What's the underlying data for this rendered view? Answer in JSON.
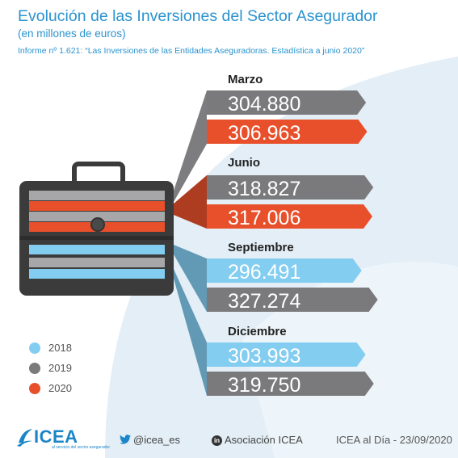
{
  "header": {
    "title": "Evolución de las Inversiones del Sector Asegurador",
    "subtitle": "(en millones de euros)",
    "source": "Informe nº 1.621: “Las Inversiones de las Entidades Aseguradoras. Estadística a junio 2020”"
  },
  "colors": {
    "accent": "#2a93cf",
    "y2018": "#83cdf1",
    "y2019": "#7a7a7c",
    "y2020": "#e8502c",
    "background_shape": "#e3eef6"
  },
  "chart_data": {
    "type": "bar",
    "categories": [
      "Marzo",
      "Junio",
      "Septiembre",
      "Diciembre"
    ],
    "series": [
      {
        "name": "2018",
        "values": [
          null,
          null,
          296.491,
          303.993
        ]
      },
      {
        "name": "2019",
        "values": [
          304.88,
          318.827,
          327.274,
          319.75
        ]
      },
      {
        "name": "2020",
        "values": [
          306.963,
          317.006,
          null,
          null
        ]
      }
    ],
    "value_labels": [
      [
        "304.880",
        "306.963"
      ],
      [
        "318.827",
        "317.006"
      ],
      [
        "296.491",
        "327.274"
      ],
      [
        "303.993",
        "319.750"
      ]
    ],
    "bar_series": [
      [
        "2019",
        "2020"
      ],
      [
        "2019",
        "2020"
      ],
      [
        "2018",
        "2019"
      ],
      [
        "2018",
        "2019"
      ]
    ],
    "legend": [
      "2018",
      "2019",
      "2020"
    ],
    "legend_position": "bottom-left",
    "grid": false
  },
  "footer": {
    "logo": "ICEA",
    "logo_tagline": "al servicio del sector asegurador",
    "twitter": "@icea_es",
    "linkedin_badge": "in",
    "linkedin": "Asociación ICEA",
    "date": "ICEA al Día - 23/09/2020"
  }
}
